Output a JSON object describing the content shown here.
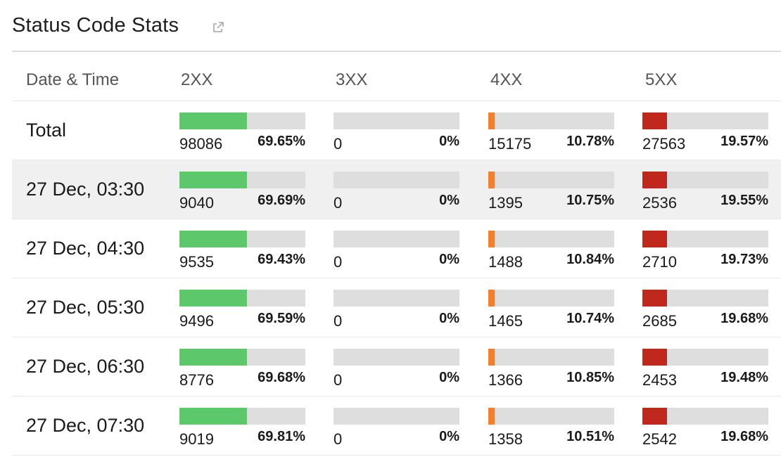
{
  "widget": {
    "title": "Status Code Stats",
    "icon": "external-link-icon"
  },
  "columns": [
    "Date & Time",
    "2XX",
    "3XX",
    "4XX",
    "5XX"
  ],
  "colors": {
    "2XX": "#5cc86b",
    "3XX": "#5cc86b",
    "4XX": "#f08030",
    "5XX": "#c0281e"
  },
  "rows": [
    {
      "label": "Total",
      "cells": [
        {
          "count": "98086",
          "pct": "69.65%",
          "ratio": 0.5363
        },
        {
          "count": "0",
          "pct": "0%",
          "ratio": 0
        },
        {
          "count": "15175",
          "pct": "10.78%",
          "ratio": 0.0503
        },
        {
          "count": "27563",
          "pct": "19.57%",
          "ratio": 0.1955
        }
      ]
    },
    {
      "label": "27 Dec, 03:30",
      "cells": [
        {
          "count": "9040",
          "pct": "69.69%",
          "ratio": 0.5363
        },
        {
          "count": "0",
          "pct": "0%",
          "ratio": 0
        },
        {
          "count": "1395",
          "pct": "10.75%",
          "ratio": 0.0503
        },
        {
          "count": "2536",
          "pct": "19.55%",
          "ratio": 0.1955
        }
      ]
    },
    {
      "label": "27 Dec, 04:30",
      "cells": [
        {
          "count": "9535",
          "pct": "69.43%",
          "ratio": 0.5363
        },
        {
          "count": "0",
          "pct": "0%",
          "ratio": 0
        },
        {
          "count": "1488",
          "pct": "10.84%",
          "ratio": 0.0503
        },
        {
          "count": "2710",
          "pct": "19.73%",
          "ratio": 0.1955
        }
      ]
    },
    {
      "label": "27 Dec, 05:30",
      "cells": [
        {
          "count": "9496",
          "pct": "69.59%",
          "ratio": 0.5363
        },
        {
          "count": "0",
          "pct": "0%",
          "ratio": 0
        },
        {
          "count": "1465",
          "pct": "10.74%",
          "ratio": 0.0503
        },
        {
          "count": "2685",
          "pct": "19.68%",
          "ratio": 0.1955
        }
      ]
    },
    {
      "label": "27 Dec, 06:30",
      "cells": [
        {
          "count": "8776",
          "pct": "69.68%",
          "ratio": 0.5363
        },
        {
          "count": "0",
          "pct": "0%",
          "ratio": 0
        },
        {
          "count": "1366",
          "pct": "10.85%",
          "ratio": 0.0503
        },
        {
          "count": "2453",
          "pct": "19.48%",
          "ratio": 0.1955
        }
      ]
    },
    {
      "label": "27 Dec, 07:30",
      "cells": [
        {
          "count": "9019",
          "pct": "69.81%",
          "ratio": 0.5363
        },
        {
          "count": "0",
          "pct": "0%",
          "ratio": 0
        },
        {
          "count": "1358",
          "pct": "10.51%",
          "ratio": 0.0503
        },
        {
          "count": "2542",
          "pct": "19.68%",
          "ratio": 0.1955
        }
      ]
    }
  ]
}
